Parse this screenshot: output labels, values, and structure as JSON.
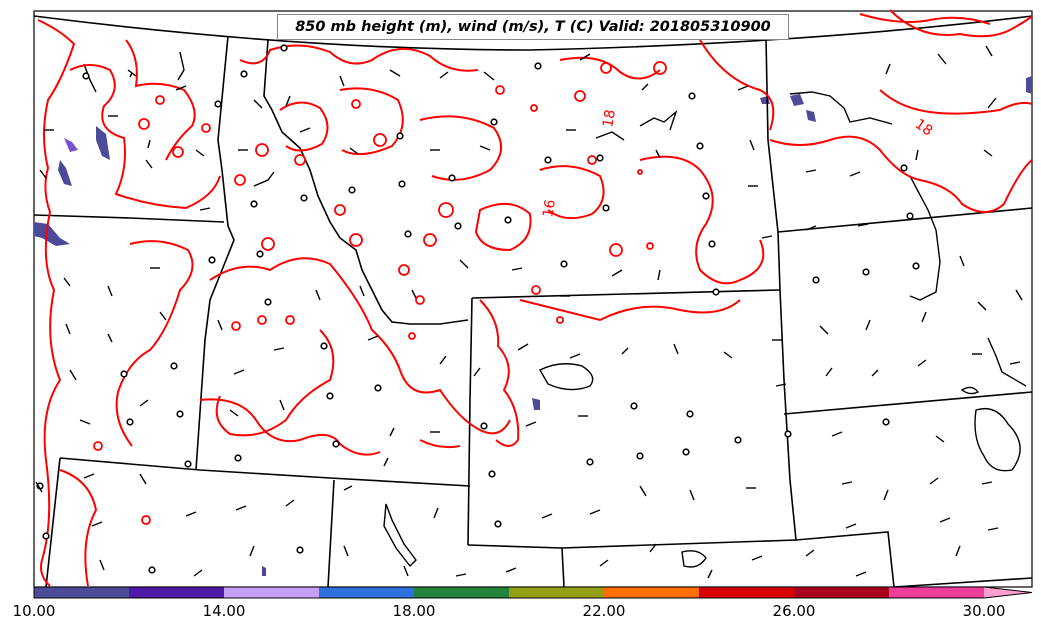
{
  "title": "850 mb height (m), wind (m/s), T (C) Valid: 201805310900",
  "contour_labels": [
    "18",
    "16",
    "18"
  ],
  "colorbar": {
    "ticks": [
      "10.00",
      "14.00",
      "18.00",
      "22.00",
      "26.00",
      "30.00"
    ],
    "colors": [
      "#4b4b9a",
      "#4f1aa8",
      "#c79ef5",
      "#2f6fe0",
      "#24843d",
      "#93a013",
      "#ff7000",
      "#d80000",
      "#a8001e",
      "#ee3e99",
      "#ff9fd0"
    ]
  },
  "colors": {
    "isotherm": "#ff0000",
    "boundaries": "#000000",
    "fill": "#4b4b9a"
  }
}
